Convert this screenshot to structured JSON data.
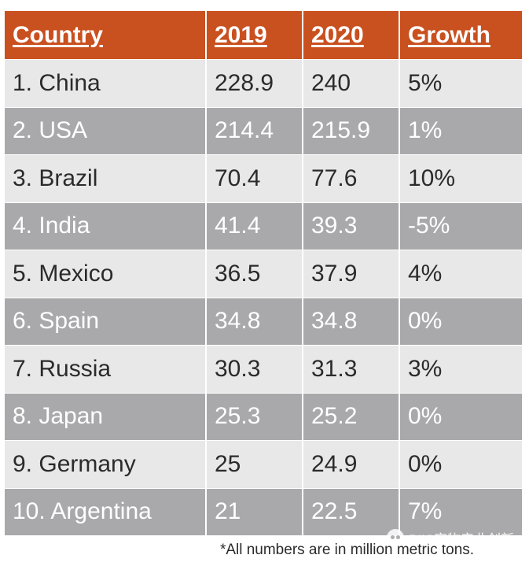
{
  "chart_data": {
    "type": "table",
    "columns": [
      "Country",
      "2019",
      "2020",
      "Growth"
    ],
    "rows": [
      [
        "1. China",
        "228.9",
        "240",
        "5%"
      ],
      [
        "2. USA",
        "214.4",
        "215.9",
        "1%"
      ],
      [
        "3. Brazil",
        "70.4",
        "77.6",
        "10%"
      ],
      [
        "4. India",
        "41.4",
        "39.3",
        "-5%"
      ],
      [
        "5. Mexico",
        "36.5",
        "37.9",
        "4%"
      ],
      [
        "6. Spain",
        "34.8",
        "34.8",
        "0%"
      ],
      [
        "7. Russia",
        "30.3",
        "31.3",
        "3%"
      ],
      [
        "8. Japan",
        "25.3",
        "25.2",
        "0%"
      ],
      [
        "9. Germany",
        "25",
        "24.9",
        "0%"
      ],
      [
        "10. Argentina",
        "21",
        "22.5",
        "7%"
      ]
    ],
    "footnote": "*All numbers are in million metric tons."
  },
  "watermark": {
    "text": "PIIS宠物产业创新",
    "icon": "wechat-icon"
  },
  "colors": {
    "header": "#c9501f",
    "row_light": "#e8e8e8",
    "row_dark": "#a9a9ab"
  }
}
